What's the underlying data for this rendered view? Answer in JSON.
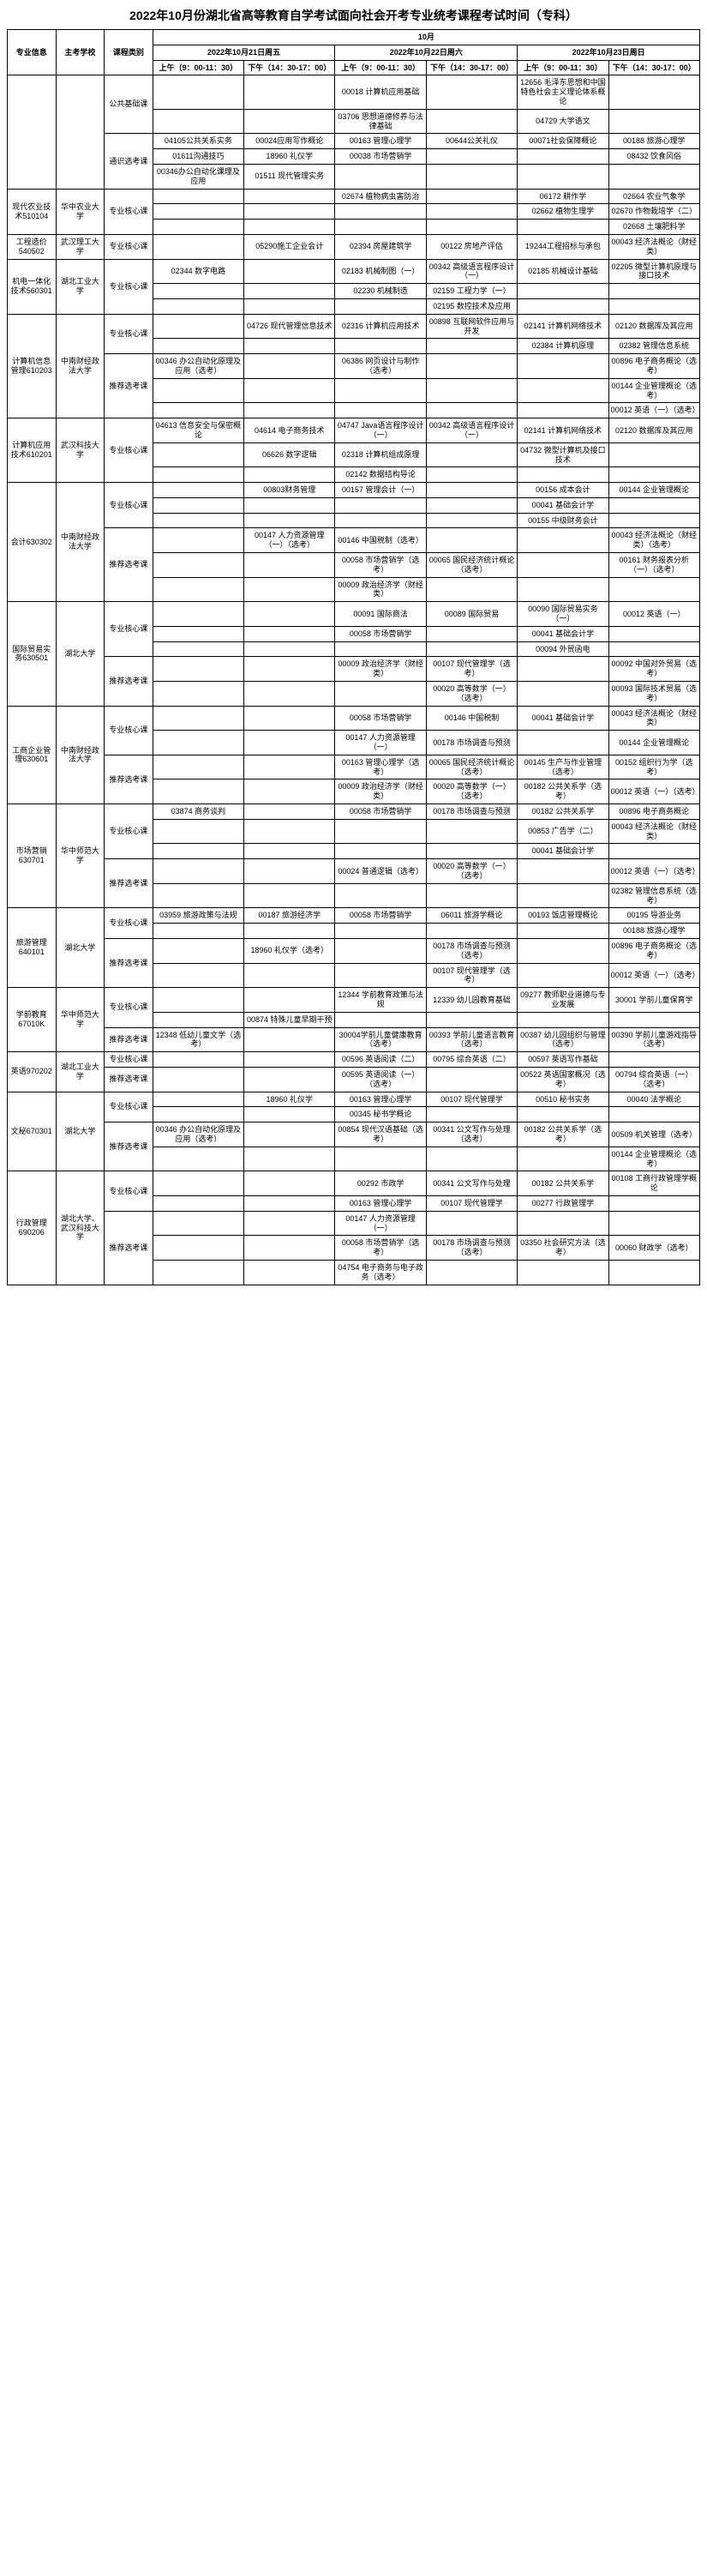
{
  "title": "2022年10月份湖北省高等教育自学考试面向社会开考专业统考课程考试时间（专科）",
  "month_header": "10月",
  "headers": {
    "major": "专业信息",
    "school": "主考学校",
    "type": "课程类别",
    "day1": "2022年10月21日周五",
    "day2": "2022年10月22日周六",
    "day3": "2022年10月23日周日",
    "am": "上午（9：00-11：30）",
    "pm": "下午（14：30-17：00）"
  },
  "common": {
    "public_basic": "公共基础课",
    "public_elective": "通识选考课",
    "pb_cells": [
      "",
      "",
      "00018 计算机应用基础",
      "",
      "12656 毛泽东思想和中国特色社会主义理论体系概论",
      ""
    ],
    "pb_cells2": [
      "",
      "",
      "03706 思想道德修养与法律基础",
      "",
      "04729 大学语文",
      ""
    ],
    "pe_r1": [
      "04105公共关系实务",
      "00024应用写作概论",
      "00163 管理心理学",
      "00644公关礼仪",
      "00071社会保障概论",
      "00188 旅游心理学"
    ],
    "pe_r2": [
      "01611沟通技巧",
      "18960 礼仪学",
      "00038 市场营销学",
      "",
      "",
      "08432 饮食风俗"
    ],
    "pe_r3": [
      "00346办公自动化课理及应用",
      "01511 现代管理实务",
      "",
      "",
      "",
      ""
    ]
  },
  "majors": [
    {
      "name": "现代农业技术510104",
      "school": "华中农业大学",
      "rows": [
        {
          "type": "专业核心课",
          "cells": [
            "",
            "",
            "02674 植物病虫害防治",
            "",
            "06172 耕作学",
            "02664 农业气象学"
          ]
        },
        {
          "type": "",
          "cells": [
            "",
            "",
            "",
            "",
            "02662 植物生理学",
            "02670 作物栽培学（二）"
          ]
        },
        {
          "type": "",
          "cells": [
            "",
            "",
            "",
            "",
            "",
            "02668 土壤肥料学"
          ]
        }
      ]
    },
    {
      "name": "工程造价540502",
      "school": "武汉理工大学",
      "rows": [
        {
          "type": "专业核心课",
          "cells": [
            "",
            "05290施工企业会计",
            "02394 房屋建筑学",
            "00122 房地产评估",
            "19244工程招标与承包",
            "00043 经济法概论（财经类）"
          ]
        }
      ]
    },
    {
      "name": "机电一体化技术560301",
      "school": "湖北工业大学",
      "rows": [
        {
          "type": "专业核心课",
          "cells": [
            "02344 数字电路",
            "",
            "02183 机械制图（一）",
            "00342 高级语言程序设计（一）",
            "02185 机械设计基础",
            "02205 微型计算机原理与接口技术"
          ]
        },
        {
          "type": "",
          "cells": [
            "",
            "",
            "02230 机械制造",
            "02159 工程力学（一）",
            "",
            ""
          ]
        },
        {
          "type": "",
          "cells": [
            "",
            "",
            "",
            "02195 数控技术及应用",
            "",
            ""
          ]
        }
      ]
    },
    {
      "name": "计算机信息管理610203",
      "school": "中南财经政法大学",
      "rows": [
        {
          "type": "专业核心课",
          "cells": [
            "",
            "04726 现代管理信息技术",
            "02316 计算机应用技术",
            "00898 互联网软件应用与开发",
            "02141 计算机网络技术",
            "02120 数据库及其应用"
          ]
        },
        {
          "type": "",
          "cells": [
            "",
            "",
            "",
            "",
            "02384 计算机原理",
            "02382 管理信息系统"
          ]
        },
        {
          "type": "推荐选考课",
          "cells": [
            "00346 办公自动化原理及应用（选考）",
            "",
            "06386 网页设计与制作（选考）",
            "",
            "",
            "00896 电子商务概论（选考）"
          ]
        },
        {
          "type": "",
          "cells": [
            "",
            "",
            "",
            "",
            "",
            "00144 企业管理概论（选考）"
          ]
        },
        {
          "type": "",
          "cells": [
            "",
            "",
            "",
            "",
            "",
            "00012 英语（一）（选考）"
          ]
        }
      ]
    },
    {
      "name": "计算机应用技术610201",
      "school": "武汉科技大学",
      "rows": [
        {
          "type": "专业核心课",
          "cells": [
            "04613 信息安全与保密概论",
            "04614 电子商务技术",
            "04747 Java语言程序设计（一）",
            "00342 高级语言程序设计（一）",
            "02141 计算机网络技术",
            "02120 数据库及其应用"
          ]
        },
        {
          "type": "",
          "cells": [
            "",
            "06626 数字逻辑",
            "02318 计算机组成原理",
            "",
            "04732 微型计算机及接口技术",
            ""
          ]
        },
        {
          "type": "",
          "cells": [
            "",
            "",
            "02142 数据结构导论",
            "",
            "",
            ""
          ]
        }
      ]
    },
    {
      "name": "会计630302",
      "school": "中南财经政法大学",
      "rows": [
        {
          "type": "专业核心课",
          "cells": [
            "",
            "00803财务管理",
            "00157 管理会计（一）",
            "",
            "00156 成本会计",
            "00144 企业管理概论"
          ]
        },
        {
          "type": "",
          "cells": [
            "",
            "",
            "",
            "",
            "00041 基础会计学",
            ""
          ]
        },
        {
          "type": "",
          "cells": [
            "",
            "",
            "",
            "",
            "00155 中级财务会计",
            ""
          ]
        },
        {
          "type": "推荐选考课",
          "cells": [
            "",
            "00147 人力资源管理（一）（选考）",
            "00146 中国税制（选考）",
            "",
            "",
            "00043 经济法概论（财经类）（选考）"
          ]
        },
        {
          "type": "",
          "cells": [
            "",
            "",
            "00058 市场营销学（选考）",
            "00065 国民经济统计概论（选考）",
            "",
            "00161 财务报表分析（一）（选考）"
          ]
        },
        {
          "type": "",
          "cells": [
            "",
            "",
            "00009 政治经济学（财经类）",
            "",
            "",
            ""
          ]
        }
      ]
    },
    {
      "name": "国际贸易实务630501",
      "school": "湖北大学",
      "rows": [
        {
          "type": "专业核心课",
          "cells": [
            "",
            "",
            "00091 国际商法",
            "00089 国际贸易",
            "00090 国际贸易实务（一）",
            "00012 英语（一）"
          ]
        },
        {
          "type": "",
          "cells": [
            "",
            "",
            "00058 市场营销学",
            "",
            "00041 基础会计学",
            ""
          ]
        },
        {
          "type": "",
          "cells": [
            "",
            "",
            "",
            "",
            "00094 外贸函电",
            ""
          ]
        },
        {
          "type": "推荐选考课",
          "cells": [
            "",
            "",
            "00009 政治经济学（财经类）",
            "00107 现代管理学（选考）",
            "",
            "00092 中国对外贸易（选考）"
          ]
        },
        {
          "type": "",
          "cells": [
            "",
            "",
            "",
            "00020 高等数学（一）（选考）",
            "",
            "00093 国际技术贸易（选考）"
          ]
        }
      ]
    },
    {
      "name": "工商企业管理630601",
      "school": "中南财经政法大学",
      "rows": [
        {
          "type": "专业核心课",
          "cells": [
            "",
            "",
            "00058 市场营销学",
            "00146 中国税制",
            "00041 基础会计学",
            "00043 经济法概论（财经类）"
          ]
        },
        {
          "type": "",
          "cells": [
            "",
            "",
            "00147 人力资源管理（一）",
            "00178 市场调查与预测",
            "",
            "00144 企业管理概论"
          ]
        },
        {
          "type": "推荐选考课",
          "cells": [
            "",
            "",
            "00163 管理心理学（选考）",
            "00065 国民经济统计概论（选考）",
            "00145 生产与作业管理（选考）",
            "00152 组织行为学（选考）"
          ]
        },
        {
          "type": "",
          "cells": [
            "",
            "",
            "00009 政治经济学（财经类）",
            "00020 高等数学（一）（选考）",
            "00182 公共关系学（选考）",
            "00012 英语（一）（选考）"
          ]
        }
      ]
    },
    {
      "name": "市场营销630701",
      "school": "华中师范大学",
      "rows": [
        {
          "type": "专业核心课",
          "cells": [
            "03874 商务谈判",
            "",
            "00058 市场营销学",
            "00178 市场调查与预测",
            "00182 公共关系学",
            "00896 电子商务概论"
          ]
        },
        {
          "type": "",
          "cells": [
            "",
            "",
            "",
            "",
            "00853 广告学（二）",
            "00043 经济法概论（财经类）"
          ]
        },
        {
          "type": "",
          "cells": [
            "",
            "",
            "",
            "",
            "00041 基础会计学",
            ""
          ]
        },
        {
          "type": "推荐选考课",
          "cells": [
            "",
            "",
            "00024 普通逻辑（选考）",
            "00020 高等数学（一）（选考）",
            "",
            "00012 英语（一）（选考）"
          ]
        },
        {
          "type": "",
          "cells": [
            "",
            "",
            "",
            "",
            "",
            "02382 管理信息系统（选考）"
          ]
        }
      ]
    },
    {
      "name": "旅游管理640101",
      "school": "湖北大学",
      "rows": [
        {
          "type": "专业核心课",
          "cells": [
            "03959 旅游政策与法规",
            "00187 旅游经济学",
            "00058 市场营销学",
            "06011 旅游学概论",
            "00193 饭店管理概论",
            "00195 导游业务"
          ]
        },
        {
          "type": "",
          "cells": [
            "",
            "",
            "",
            "",
            "",
            "00188 旅游心理学"
          ]
        },
        {
          "type": "推荐选考课",
          "cells": [
            "",
            "18960 礼仪学（选考）",
            "",
            "00178 市场调查与预测（选考）",
            "",
            "00896 电子商务概论（选考）"
          ]
        },
        {
          "type": "",
          "cells": [
            "",
            "",
            "",
            "00107 现代管理学（选考）",
            "",
            "00012 英语（一）（选考）"
          ]
        }
      ]
    },
    {
      "name": "学前教育67010K",
      "school": "华中师范大学",
      "rows": [
        {
          "type": "专业核心课",
          "cells": [
            "",
            "",
            "12344 学前教育政策与法规",
            "12339 幼儿园教育基础",
            "09277 教师职业道德与专业发展",
            "30001 学前儿童保育学"
          ]
        },
        {
          "type": "",
          "cells": [
            "",
            "00874 特殊儿童早期干预",
            "",
            "",
            "",
            ""
          ]
        },
        {
          "type": "推荐选考课",
          "cells": [
            "12348 低幼儿童文学（选考）",
            "",
            "30004学前儿童健康教育（选考）",
            "00393 学前儿童语言教育（选考）",
            "00387 幼儿园组织与管理（选考）",
            "00390 学前儿童游戏指导（选考）"
          ]
        }
      ]
    },
    {
      "name": "英语970202",
      "school": "湖北工业大学",
      "rows": [
        {
          "type": "专业核心课",
          "cells": [
            "",
            "",
            "00596 英语阅读（二）",
            "00795 综合英语（二）",
            "00597 英语写作基础",
            ""
          ]
        },
        {
          "type": "推荐选考课",
          "cells": [
            "",
            "",
            "00595 英语阅读（一）（选考）",
            "",
            "00522 英语国家概况（选考）",
            "00794 综合英语（一）（选考）"
          ]
        }
      ]
    },
    {
      "name": "文秘670301",
      "school": "湖北大学",
      "rows": [
        {
          "type": "专业核心课",
          "cells": [
            "",
            "18960 礼仪学",
            "00163 管理心理学",
            "00107 现代管理学",
            "00510 秘书实务",
            "00040 法学概论"
          ]
        },
        {
          "type": "",
          "cells": [
            "",
            "",
            "00345 秘书学概论",
            "",
            "",
            ""
          ]
        },
        {
          "type": "推荐选考课",
          "cells": [
            "00346 办公自动化原理及应用（选考）",
            "",
            "00854 现代汉语基础（选考）",
            "00341 公文写作与处理（选考）",
            "00182 公共关系学（选考）",
            "00509 机关管理（选考）"
          ]
        },
        {
          "type": "",
          "cells": [
            "",
            "",
            "",
            "",
            "",
            "00144 企业管理概论（选考）"
          ]
        }
      ]
    },
    {
      "name": "行政管理690206",
      "school": "湖北大学、武汉科技大学",
      "rows": [
        {
          "type": "专业核心课",
          "cells": [
            "",
            "",
            "00292 市政学",
            "00341 公文写作与处理",
            "00182 公共关系学",
            "00108 工商行政管理学概论"
          ]
        },
        {
          "type": "",
          "cells": [
            "",
            "",
            "00163 管理心理学",
            "00107 现代管理学",
            "00277 行政管理学",
            ""
          ]
        },
        {
          "type": "推荐选考课",
          "cells": [
            "",
            "",
            "00147 人力资源管理（一）",
            "",
            "",
            ""
          ]
        },
        {
          "type": "",
          "cells": [
            "",
            "",
            "00058 市场营销学（选考）",
            "00178 市场调查与预测（选考）",
            "03350 社会研究方法（选考）",
            "00060 财政学（选考）"
          ]
        },
        {
          "type": "",
          "cells": [
            "",
            "",
            "04754 电子商务与电子政务（选考）",
            "",
            "",
            ""
          ]
        }
      ]
    }
  ]
}
